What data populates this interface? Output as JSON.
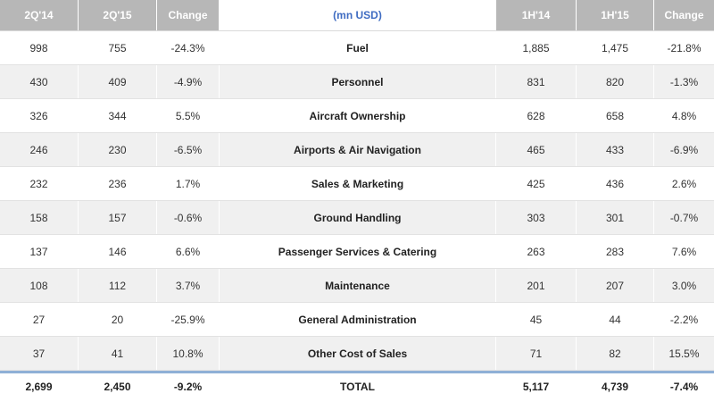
{
  "colors": {
    "header_bg": "#b7b7b7",
    "header_text": "#ffffff",
    "unit_label_text": "#3f6cc2",
    "alt_row_bg": "#f0f0f0",
    "total_divider": "#8fb0d6"
  },
  "header": {
    "col_2q14": "2Q'14",
    "col_2q15": "2Q'15",
    "col_change_q": "Change",
    "unit_label": "(mn USD)",
    "col_1h14": "1H'14",
    "col_1h15": "1H'15",
    "col_change_h": "Change"
  },
  "rows": [
    {
      "q14": "998",
      "q15": "755",
      "chg_q": "-24.3%",
      "name": "Fuel",
      "h14": "1,885",
      "h15": "1,475",
      "chg_h": "-21.8%"
    },
    {
      "q14": "430",
      "q15": "409",
      "chg_q": "-4.9%",
      "name": "Personnel",
      "h14": "831",
      "h15": "820",
      "chg_h": "-1.3%"
    },
    {
      "q14": "326",
      "q15": "344",
      "chg_q": "5.5%",
      "name": "Aircraft Ownership",
      "h14": "628",
      "h15": "658",
      "chg_h": "4.8%"
    },
    {
      "q14": "246",
      "q15": "230",
      "chg_q": "-6.5%",
      "name": "Airports & Air Navigation",
      "h14": "465",
      "h15": "433",
      "chg_h": "-6.9%"
    },
    {
      "q14": "232",
      "q15": "236",
      "chg_q": "1.7%",
      "name": "Sales & Marketing",
      "h14": "425",
      "h15": "436",
      "chg_h": "2.6%"
    },
    {
      "q14": "158",
      "q15": "157",
      "chg_q": "-0.6%",
      "name": "Ground Handling",
      "h14": "303",
      "h15": "301",
      "chg_h": "-0.7%"
    },
    {
      "q14": "137",
      "q15": "146",
      "chg_q": "6.6%",
      "name": "Passenger Services & Catering",
      "h14": "263",
      "h15": "283",
      "chg_h": "7.6%"
    },
    {
      "q14": "108",
      "q15": "112",
      "chg_q": "3.7%",
      "name": "Maintenance",
      "h14": "201",
      "h15": "207",
      "chg_h": "3.0%"
    },
    {
      "q14": "27",
      "q15": "20",
      "chg_q": "-25.9%",
      "name": "General Administration",
      "h14": "45",
      "h15": "44",
      "chg_h": "-2.2%"
    },
    {
      "q14": "37",
      "q15": "41",
      "chg_q": "10.8%",
      "name": "Other Cost of Sales",
      "h14": "71",
      "h15": "82",
      "chg_h": "15.5%"
    }
  ],
  "total": {
    "q14": "2,699",
    "q15": "2,450",
    "chg_q": "-9.2%",
    "name": "TOTAL",
    "h14": "5,117",
    "h15": "4,739",
    "chg_h": "-7.4%"
  }
}
